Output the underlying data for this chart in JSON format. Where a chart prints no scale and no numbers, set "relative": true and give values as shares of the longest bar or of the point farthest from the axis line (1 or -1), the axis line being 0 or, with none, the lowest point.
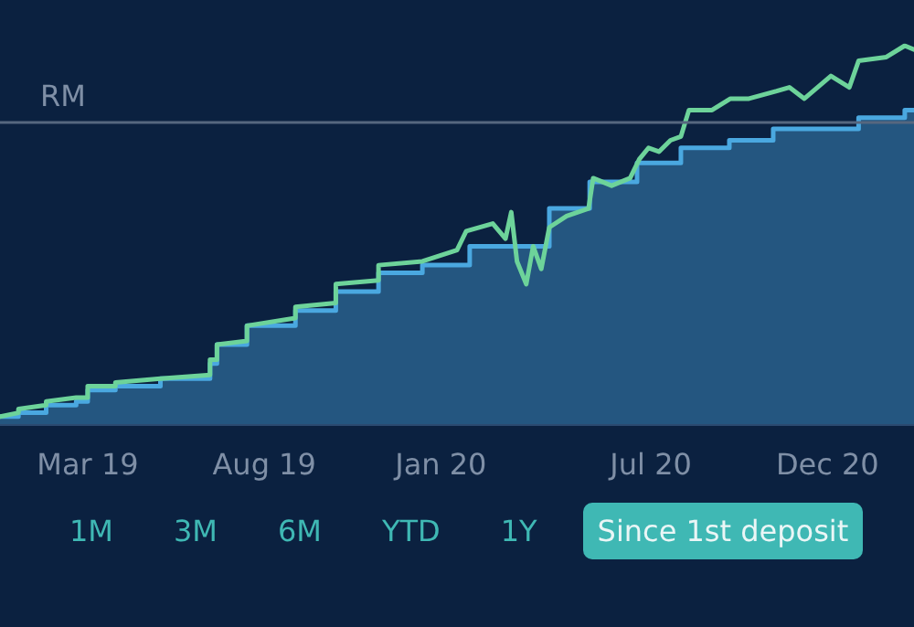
{
  "chart_data": {
    "type": "line",
    "relative": true,
    "grid": false,
    "xlim": [
      "2018-12-15",
      "2021-02-14"
    ],
    "xticks": [
      {
        "value": "2019-03-01",
        "label": "Mar 19"
      },
      {
        "value": "2019-08-01",
        "label": "Aug 19"
      },
      {
        "value": "2020-01-01",
        "label": "Jan 20"
      },
      {
        "value": "2020-07-01",
        "label": "Jul 20"
      },
      {
        "value": "2020-12-01",
        "label": "Dec 20"
      }
    ],
    "ref_lines": [
      {
        "axis": "y",
        "value": 0.8,
        "label": "RM",
        "color": "#56677f"
      }
    ],
    "annotations": [
      "1M",
      "3M",
      "6M",
      "YTD",
      "1Y",
      "Since 1st deposit"
    ],
    "series": [
      {
        "type": "area",
        "color": "#4aa8e0",
        "x": [
          "2018-12-15",
          "2018-12-31",
          "2018-12-31",
          "2019-01-24",
          "2019-01-24",
          "2019-02-19",
          "2019-02-19",
          "2019-03-01",
          "2019-03-01",
          "2019-03-25",
          "2019-03-25",
          "2019-05-03",
          "2019-05-03",
          "2019-06-15",
          "2019-06-15",
          "2019-06-21",
          "2019-06-21",
          "2019-07-17",
          "2019-07-17",
          "2019-08-28",
          "2019-08-28",
          "2019-10-02",
          "2019-10-02",
          "2019-11-08",
          "2019-11-08",
          "2019-12-16",
          "2019-12-16",
          "2020-01-26",
          "2020-01-26",
          "2020-04-04",
          "2020-04-04",
          "2020-05-09",
          "2020-05-09",
          "2020-06-19",
          "2020-06-19",
          "2020-07-27",
          "2020-07-27",
          "2020-09-07",
          "2020-09-07",
          "2020-10-15",
          "2020-10-15",
          "2020-12-28",
          "2020-12-28",
          "2021-02-06",
          "2021-02-06",
          "2021-02-14"
        ],
        "values": [
          0.02,
          0.02,
          0.03,
          0.03,
          0.05,
          0.05,
          0.06,
          0.06,
          0.09,
          0.09,
          0.1,
          0.1,
          0.12,
          0.12,
          0.16,
          0.16,
          0.21,
          0.21,
          0.26,
          0.26,
          0.3,
          0.3,
          0.35,
          0.35,
          0.4,
          0.4,
          0.42,
          0.42,
          0.47,
          0.47,
          0.57,
          0.57,
          0.64,
          0.64,
          0.69,
          0.69,
          0.73,
          0.73,
          0.75,
          0.75,
          0.78,
          0.78,
          0.81,
          0.81,
          0.83,
          0.83
        ]
      },
      {
        "color": "#6dd39a",
        "x": [
          "2018-12-15",
          "2018-12-31",
          "2018-12-31",
          "2019-01-24",
          "2019-01-24",
          "2019-02-19",
          "2019-03-01",
          "2019-03-01",
          "2019-03-25",
          "2019-03-25",
          "2019-05-03",
          "2019-06-15",
          "2019-06-15",
          "2019-06-21",
          "2019-06-21",
          "2019-07-17",
          "2019-07-17",
          "2019-08-28",
          "2019-08-28",
          "2019-10-02",
          "2019-10-02",
          "2019-11-08",
          "2019-11-08",
          "2019-12-16",
          "2020-01-15",
          "2020-01-23",
          "2020-02-15",
          "2020-02-26",
          "2020-03-02",
          "2020-03-07",
          "2020-03-15",
          "2020-03-21",
          "2020-03-28",
          "2020-04-04",
          "2020-04-19",
          "2020-05-08",
          "2020-05-12",
          "2020-05-28",
          "2020-06-13",
          "2020-06-21",
          "2020-06-29",
          "2020-07-08",
          "2020-07-18",
          "2020-07-27",
          "2020-08-03",
          "2020-08-23",
          "2020-09-08",
          "2020-09-24",
          "2020-10-18",
          "2020-10-29",
          "2020-11-11",
          "2020-12-04",
          "2020-12-20",
          "2020-12-28",
          "2021-01-21",
          "2021-02-06",
          "2021-02-14"
        ],
        "values": [
          0.02,
          0.03,
          0.04,
          0.05,
          0.06,
          0.07,
          0.07,
          0.1,
          0.1,
          0.11,
          0.12,
          0.13,
          0.17,
          0.17,
          0.21,
          0.22,
          0.26,
          0.28,
          0.31,
          0.32,
          0.37,
          0.38,
          0.42,
          0.43,
          0.46,
          0.51,
          0.53,
          0.49,
          0.56,
          0.43,
          0.37,
          0.47,
          0.41,
          0.52,
          0.55,
          0.57,
          0.65,
          0.63,
          0.65,
          0.7,
          0.73,
          0.72,
          0.75,
          0.76,
          0.83,
          0.83,
          0.86,
          0.86,
          0.88,
          0.89,
          0.86,
          0.92,
          0.89,
          0.96,
          0.97,
          1.0,
          0.99
        ]
      }
    ]
  }
}
